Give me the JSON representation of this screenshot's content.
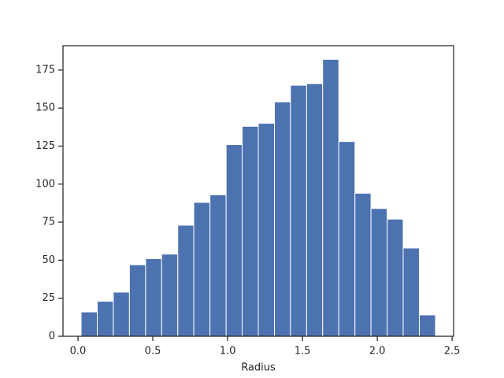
{
  "chart_data": {
    "type": "histogram",
    "xlabel": "Radius",
    "bins": [
      0.021,
      0.129,
      0.236,
      0.344,
      0.452,
      0.559,
      0.667,
      0.774,
      0.882,
      0.99,
      1.097,
      1.205,
      1.313,
      1.42,
      1.528,
      1.635,
      1.743,
      1.851,
      1.958,
      2.066,
      2.173,
      2.281,
      2.389
    ],
    "counts": [
      16,
      23,
      29,
      47,
      51,
      54,
      73,
      88,
      93,
      126,
      138,
      140,
      154,
      165,
      166,
      182,
      128,
      94,
      84,
      77,
      58,
      14
    ],
    "color": "#4c72b0",
    "edgecolor": "#ffffff",
    "xlim": [
      -0.1,
      2.51
    ],
    "ylim": [
      0,
      191
    ],
    "xticks": [
      {
        "value": 0,
        "label": "0.0"
      },
      0.5,
      {
        "value": 1,
        "label": "1.0"
      },
      1.5,
      {
        "value": 2,
        "label": "2.0"
      },
      2.5
    ],
    "yticks": [
      0,
      25,
      50,
      75,
      100,
      125,
      150,
      175
    ]
  }
}
